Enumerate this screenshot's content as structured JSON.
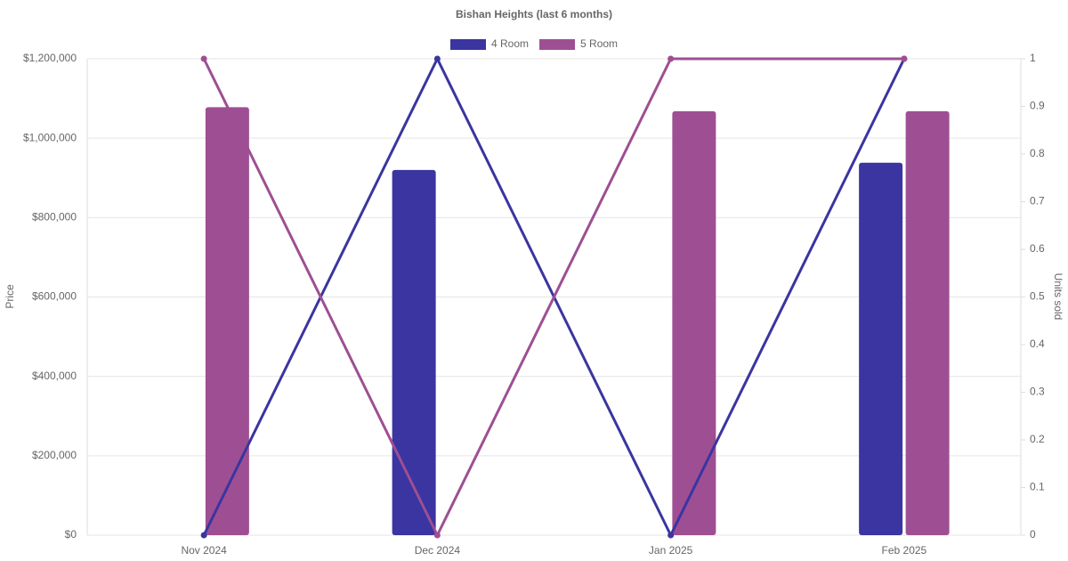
{
  "chart_data": {
    "type": "bar-line",
    "title": "Bishan Heights (last 6 months)",
    "categories": [
      "Nov 2024",
      "Dec 2024",
      "Jan 2025",
      "Feb 2025"
    ],
    "series": [
      {
        "name": "4 Room",
        "color": "#3a35a0",
        "values": [
          null,
          920000,
          null,
          938000
        ]
      },
      {
        "name": "5 Room",
        "color": "#9e4f93",
        "values": [
          1078000,
          null,
          1068000,
          1068000
        ]
      }
    ],
    "line_series": [
      {
        "color": "#3a35a0",
        "axis": "y2",
        "values": [
          0,
          1,
          0,
          1
        ]
      },
      {
        "color": "#9e4f93",
        "axis": "y2",
        "values": [
          1,
          0,
          1,
          1
        ]
      }
    ],
    "y_label": "Price",
    "y2_label": "Units sold",
    "ylim": [
      0,
      1200000
    ],
    "yticks": [
      {
        "value": 0,
        "label": "$0"
      },
      {
        "value": 200000,
        "label": "$200,000"
      },
      {
        "value": 400000,
        "label": "$400,000"
      },
      {
        "value": 600000,
        "label": "$600,000"
      },
      {
        "value": 800000,
        "label": "$800,000"
      },
      {
        "value": 1000000,
        "label": "$1,000,000"
      },
      {
        "value": 1200000,
        "label": "$1,200,000"
      }
    ],
    "y2lim": [
      0,
      1
    ],
    "y2ticks": [
      0,
      0.1,
      0.2,
      0.3,
      0.4,
      0.5,
      0.6,
      0.7,
      0.8,
      0.9,
      1
    ],
    "grid": true
  }
}
